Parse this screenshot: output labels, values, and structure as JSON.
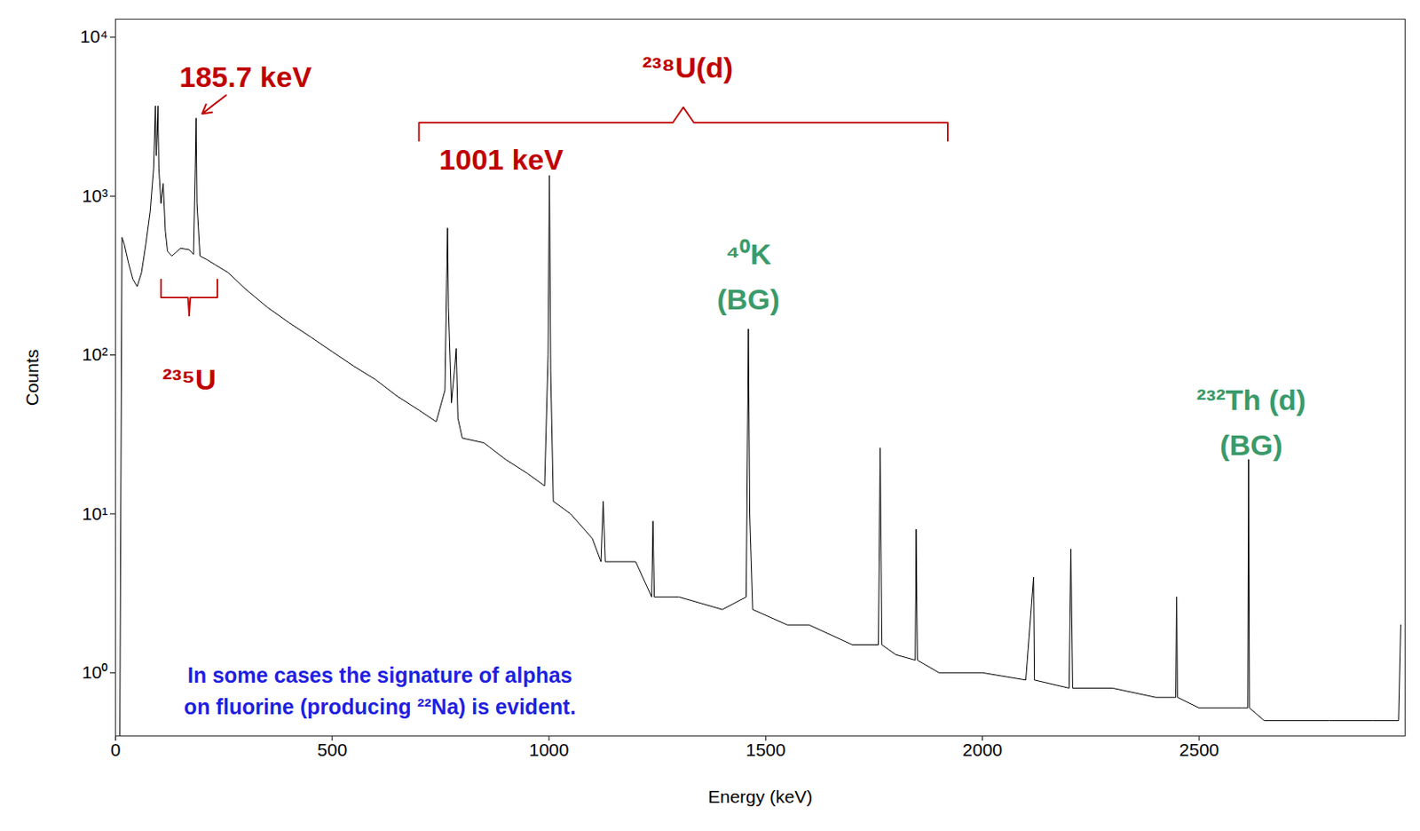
{
  "chart_data": {
    "type": "line",
    "x_label": "Energy (keV)",
    "y_label": "Counts",
    "log": "y",
    "grid": false,
    "color": "#000000",
    "xlim": [
      0,
      2975
    ],
    "xticks": [
      0,
      500,
      1000,
      1500,
      2000,
      2500
    ],
    "ylim": [
      0.4,
      13000
    ],
    "yticks": [
      {
        "value": 1,
        "label": "10⁰"
      },
      {
        "value": 10,
        "label": "10¹"
      },
      {
        "value": 100,
        "label": "10²"
      },
      {
        "value": 1000,
        "label": "10³"
      },
      {
        "value": 10000,
        "label": "10⁴"
      }
    ],
    "x": [
      10,
      15,
      20,
      30,
      40,
      50,
      60,
      70,
      80,
      88,
      92,
      94,
      96,
      98,
      100,
      105,
      110,
      115,
      120,
      130,
      150,
      170,
      180,
      184,
      186,
      188,
      195,
      210,
      230,
      260,
      300,
      350,
      400,
      450,
      500,
      550,
      600,
      650,
      700,
      740,
      760,
      764,
      766,
      768,
      775,
      782,
      786,
      790,
      800,
      850,
      900,
      950,
      990,
      998,
      1001,
      1004,
      1010,
      1050,
      1100,
      1120,
      1125,
      1130,
      1200,
      1237,
      1240,
      1243,
      1300,
      1400,
      1455,
      1460,
      1463,
      1470,
      1550,
      1600,
      1700,
      1760,
      1764,
      1768,
      1800,
      1845,
      1847,
      1850,
      1900,
      2000,
      2100,
      2118,
      2120,
      2200,
      2204,
      2208,
      2300,
      2400,
      2446,
      2448,
      2450,
      2500,
      2600,
      2612,
      2614,
      2616,
      2650,
      2800,
      2900,
      2960,
      2965
    ],
    "values": [
      0.4,
      550,
      500,
      380,
      300,
      270,
      330,
      500,
      800,
      1500,
      3700,
      1800,
      2500,
      3700,
      1500,
      900,
      1200,
      600,
      450,
      420,
      470,
      460,
      430,
      1500,
      3100,
      900,
      420,
      400,
      370,
      330,
      260,
      200,
      160,
      130,
      105,
      85,
      70,
      55,
      45,
      38,
      60,
      300,
      630,
      200,
      50,
      80,
      110,
      40,
      30,
      28,
      22,
      18,
      15,
      100,
      1350,
      80,
      12,
      10,
      7,
      5,
      12,
      5,
      5,
      3,
      9,
      3,
      3,
      2.5,
      3,
      146,
      10,
      2.5,
      2,
      2,
      1.5,
      1.5,
      26,
      1.5,
      1.3,
      1.2,
      8,
      1.2,
      1,
      1,
      0.9,
      4,
      0.9,
      0.8,
      6,
      0.8,
      0.8,
      0.7,
      0.7,
      3,
      0.7,
      0.6,
      0.6,
      0.6,
      22,
      0.6,
      0.5,
      0.5,
      0.5,
      0.5,
      2
    ],
    "annotations": [
      {
        "text": "185.7 keV",
        "x": 300,
        "y": 6000,
        "color": "#c00000",
        "arrow_to": [
          200,
          3300
        ]
      },
      {
        "text": "²³⁸U(d)",
        "x": 1320,
        "y": 6900,
        "color": "#c00000",
        "bracket": [
          700,
          1920,
          2900
        ]
      },
      {
        "text": "1001 keV",
        "x": 890,
        "y": 1800,
        "color": "#c00000"
      },
      {
        "text": "²³⁵U",
        "x": 170,
        "y": 75,
        "color": "#c00000",
        "bracket": [
          105,
          235,
          230
        ]
      },
      {
        "text": "⁴⁰K\n(BG)",
        "x": 1460,
        "y": 330,
        "color": "#3a9a6a"
      },
      {
        "text": "²³²Th (d)\n(BG)",
        "x": 2620,
        "y": 40,
        "color": "#3a9a6a"
      },
      {
        "text": "In some cases the signature of alphas\non fluorine (producing ²²Na) is evident.",
        "x": 610,
        "y": 0.8,
        "color": "#1f1fe0"
      }
    ]
  }
}
